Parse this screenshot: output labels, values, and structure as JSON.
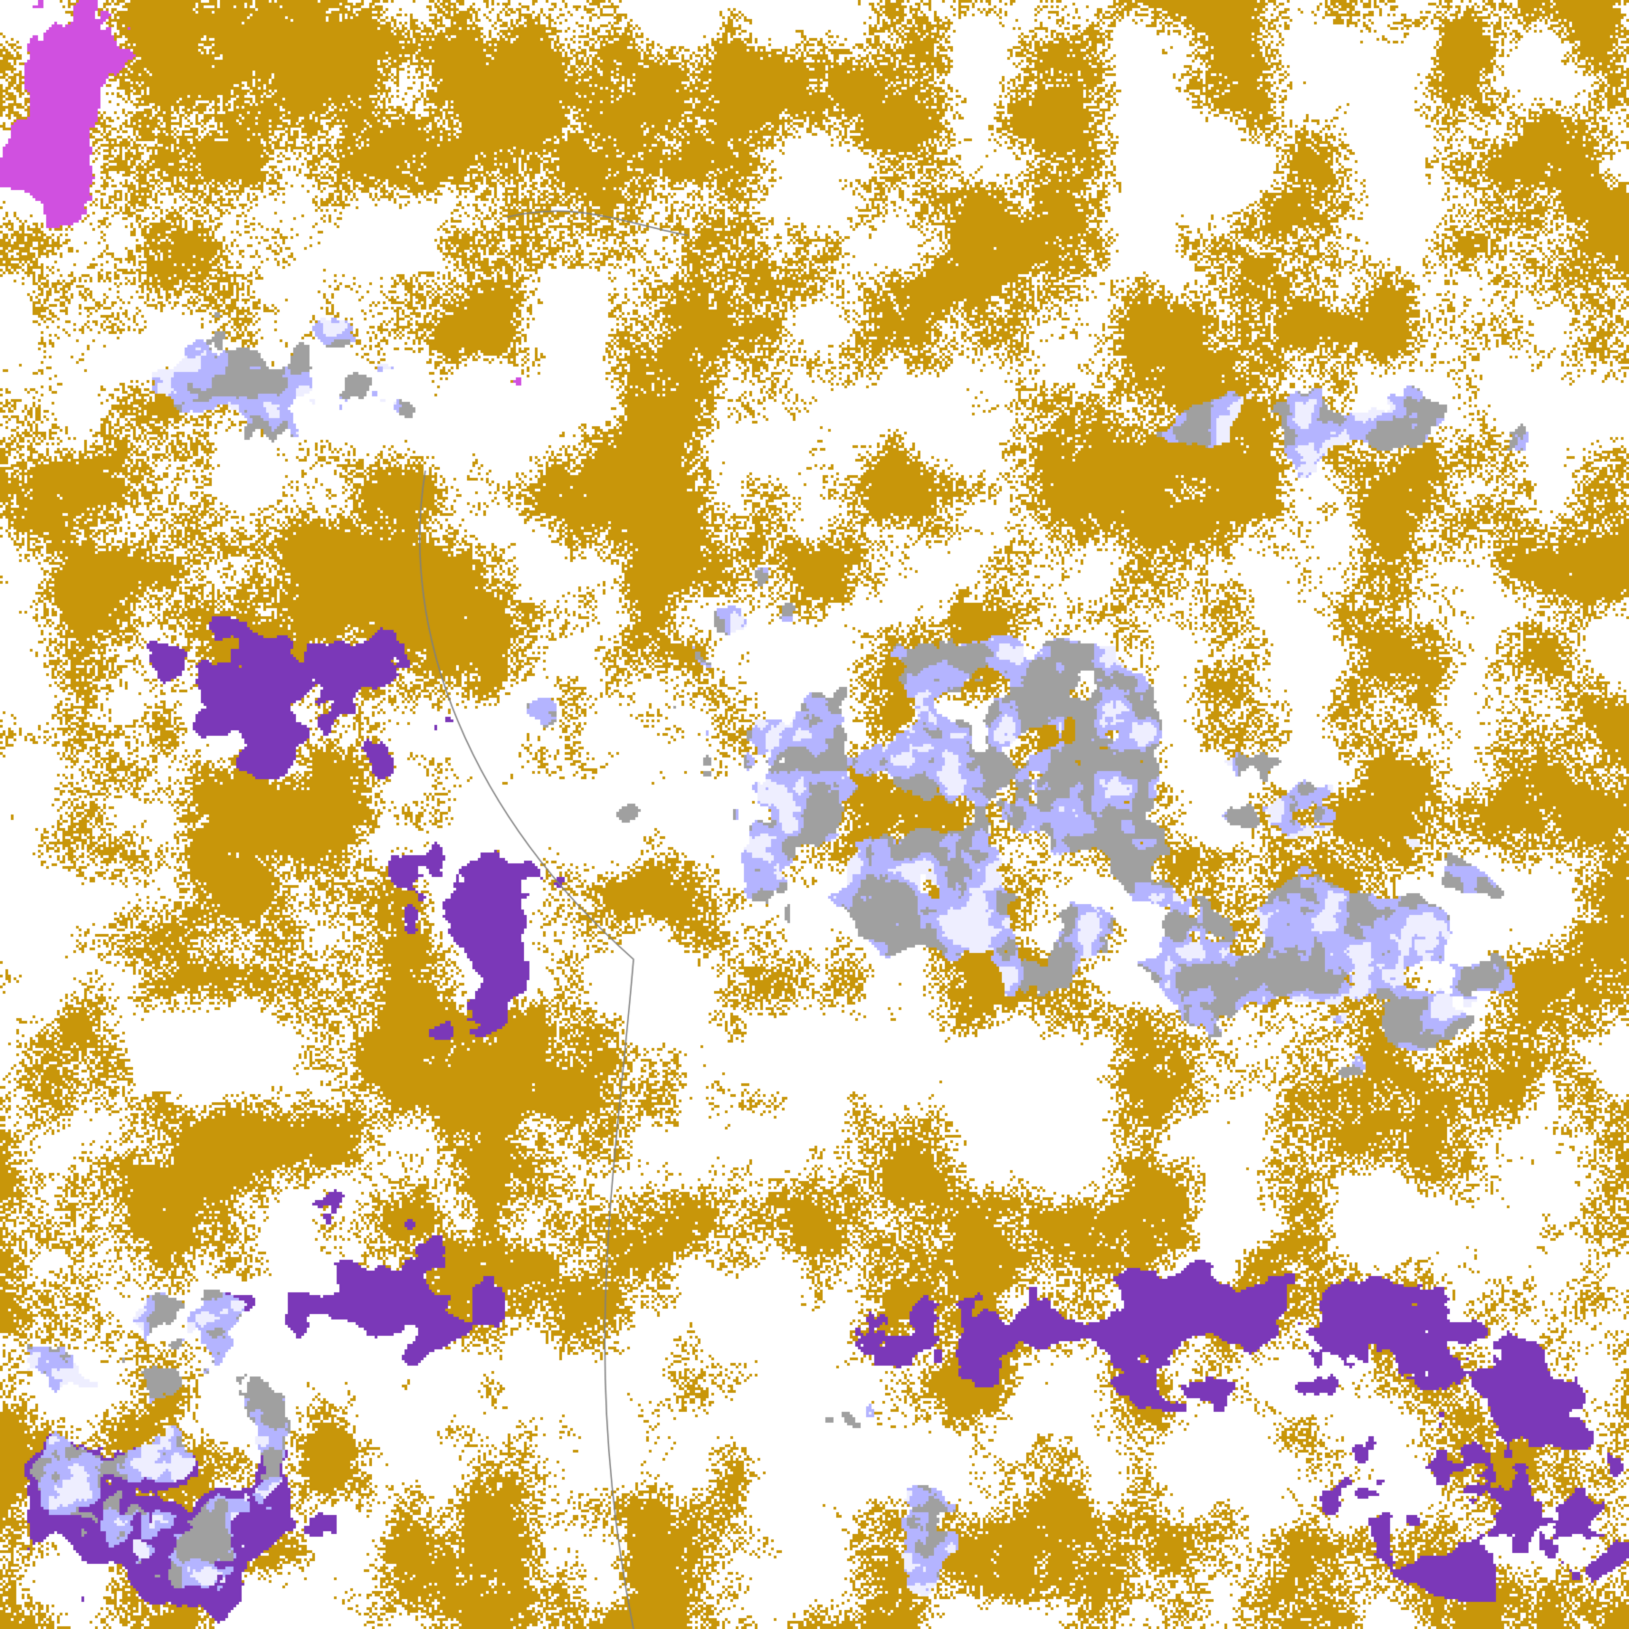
{
  "image": {
    "kind": "false-color satellite cloud classification",
    "palette": {
      "clear": "#ffffff",
      "low_cloud": "#c8960a",
      "mid_cloud": "#7b38b8",
      "high_cloud": "#b4b4ff",
      "thin_cirrus": "#a0a0a0",
      "deep_convection": "#eeeeff",
      "overshoot": "#d050e0",
      "coastline": "#808080"
    }
  }
}
